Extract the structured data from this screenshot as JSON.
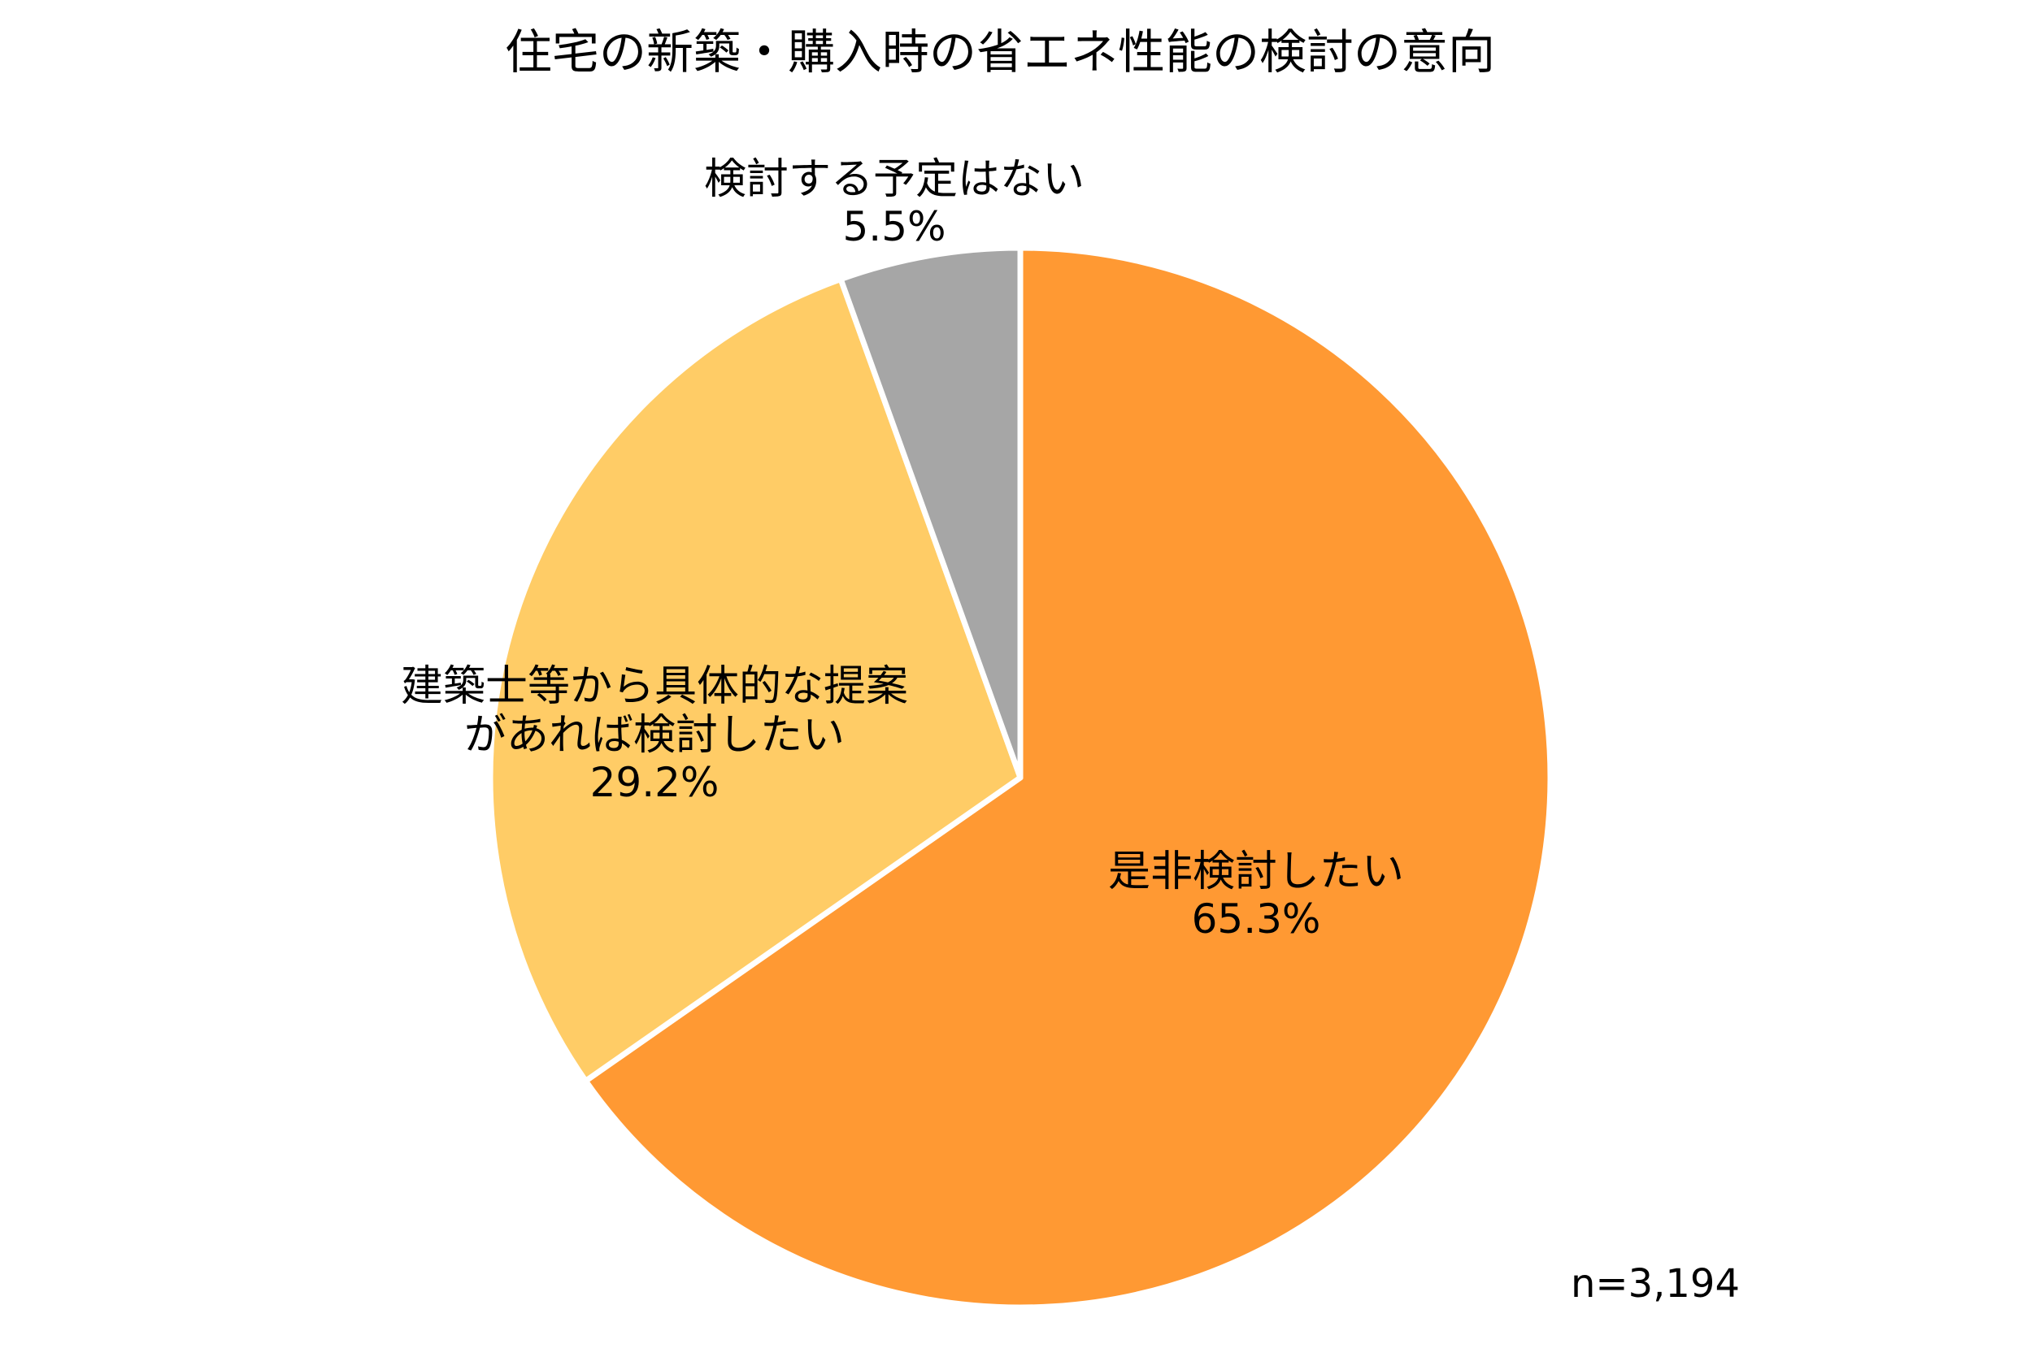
{
  "chart_data": {
    "type": "pie",
    "title": "住宅の新築・購入時の省エネ性能の検討の意向",
    "slices": [
      {
        "label_lines": [
          "是非検討したい"
        ],
        "value": 65.3,
        "value_label": "65.3%",
        "color": "#FF9933"
      },
      {
        "label_lines": [
          "建築士等から具体的な提案",
          "があれば検討したい"
        ],
        "value": 29.2,
        "value_label": "29.2%",
        "color": "#FFCC66"
      },
      {
        "label_lines": [
          "検討する予定はない"
        ],
        "value": 5.5,
        "value_label": "5.5%",
        "color": "#A6A6A6"
      }
    ],
    "start_angle": "12 o'clock",
    "direction": "clockwise",
    "note": "n=3,194"
  }
}
